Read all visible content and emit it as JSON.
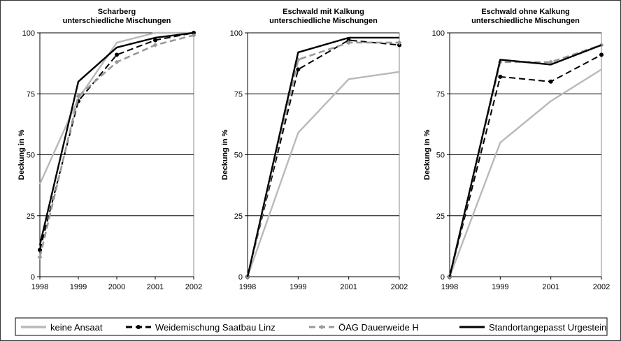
{
  "legend": {
    "placement": "bottom",
    "items": [
      {
        "label": "keine Ansaat",
        "color": "#b9b9b9",
        "dash": "solid",
        "marker": "none"
      },
      {
        "label": "Weidemischung Saatbau Linz",
        "color": "#000000",
        "dash": "dash",
        "marker": "circle"
      },
      {
        "label": "ÖAG Dauerweide H",
        "color": "#999999",
        "dash": "dash",
        "marker": "diamond"
      },
      {
        "label": "Standortangepasst Urgestein",
        "color": "#000000",
        "dash": "solid",
        "marker": "none"
      }
    ]
  },
  "chart_data": [
    {
      "type": "line",
      "title": [
        "Scharberg",
        "unterschiedliche Mischungen"
      ],
      "ylabel": "Deckung in %",
      "xlabel": "",
      "ylim": [
        0,
        100
      ],
      "yticks": [
        0,
        25,
        50,
        75,
        100
      ],
      "grid": "horizontal",
      "x": [
        "1998",
        "1999",
        "2000",
        "2001",
        "2002"
      ],
      "series": [
        {
          "name": "keine Ansaat",
          "values": [
            38,
            73,
            96,
            100,
            100
          ]
        },
        {
          "name": "Weidemischung Saatbau Linz",
          "values": [
            11,
            72,
            91,
            97,
            100
          ]
        },
        {
          "name": "ÖAG Dauerweide H",
          "values": [
            8,
            74,
            88,
            95,
            99
          ]
        },
        {
          "name": "Standortangepasst Urgestein",
          "values": [
            13,
            80,
            94,
            98,
            100
          ]
        }
      ]
    },
    {
      "type": "line",
      "title": [
        "Eschwald mit Kalkung",
        "unterschiedliche Mischungen"
      ],
      "ylabel": "Deckung in %",
      "xlabel": "",
      "ylim": [
        0,
        100
      ],
      "yticks": [
        0,
        25,
        50,
        75,
        100
      ],
      "grid": "horizontal",
      "x": [
        "1998",
        "1999",
        "2001",
        "2002"
      ],
      "series": [
        {
          "name": "keine Ansaat",
          "values": [
            0,
            59,
            81,
            84
          ]
        },
        {
          "name": "Weidemischung Saatbau Linz",
          "values": [
            0,
            85,
            97,
            95
          ]
        },
        {
          "name": "ÖAG Dauerweide H",
          "values": [
            0,
            89,
            96,
            96
          ]
        },
        {
          "name": "Standortangepasst Urgestein",
          "values": [
            0,
            92,
            98,
            98
          ]
        }
      ]
    },
    {
      "type": "line",
      "title": [
        "Eschwald ohne Kalkung",
        "unterschiedliche Mischungen"
      ],
      "ylabel": "Deckung in %",
      "xlabel": "",
      "ylim": [
        0,
        100
      ],
      "yticks": [
        0,
        25,
        50,
        75,
        100
      ],
      "grid": "horizontal",
      "x": [
        "1998",
        "1999",
        "2001",
        "2002"
      ],
      "series": [
        {
          "name": "keine Ansaat",
          "values": [
            0,
            55,
            72,
            85
          ]
        },
        {
          "name": "Weidemischung Saatbau Linz",
          "values": [
            0,
            82,
            80,
            91
          ]
        },
        {
          "name": "ÖAG Dauerweide H",
          "values": [
            0,
            88,
            88,
            95
          ]
        },
        {
          "name": "Standortangepasst Urgestein",
          "values": [
            0,
            89,
            87,
            95
          ]
        }
      ]
    }
  ]
}
